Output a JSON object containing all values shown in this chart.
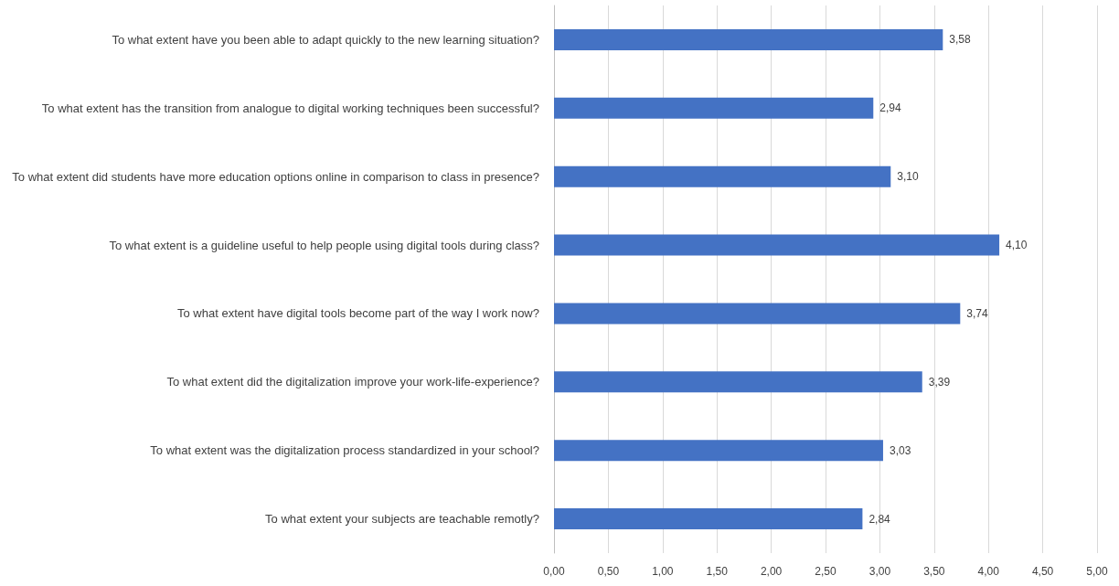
{
  "chart_data": {
    "type": "bar",
    "orientation": "horizontal",
    "categories": [
      "To what extent have you been able to adapt quickly to the new learning situation?",
      "To what extent has the transition from analogue to digital working techniques been successful?",
      "To what extent did students have more education options online in comparison to class in presence?",
      "To what extent is a guideline useful to help people using digital tools during class?",
      "To what extent have digital tools become part of the way I work now?",
      "To what extent did the digitalization improve your work-life-experience?",
      "To what extent was the digitalization process standardized in your school?",
      "To what extent your subjects are teachable remotly?"
    ],
    "values": [
      3.58,
      2.94,
      3.1,
      4.1,
      3.74,
      3.39,
      3.03,
      2.84
    ],
    "value_labels": [
      "3,58",
      "2,94",
      "3,10",
      "4,10",
      "3,74",
      "3,39",
      "3,03",
      "2,84"
    ],
    "color": "#4472c4",
    "xlim": [
      0,
      5
    ],
    "xticks": [
      {
        "value": 0,
        "label": "0,00"
      },
      {
        "value": 0.5,
        "label": "0,50"
      },
      {
        "value": 1,
        "label": "1,00"
      },
      {
        "value": 1.5,
        "label": "1,50"
      },
      {
        "value": 2,
        "label": "2,00"
      },
      {
        "value": 2.5,
        "label": "2,50"
      },
      {
        "value": 3,
        "label": "3,00"
      },
      {
        "value": 3.5,
        "label": "3,50"
      },
      {
        "value": 4,
        "label": "4,00"
      },
      {
        "value": 4.5,
        "label": "4,50"
      },
      {
        "value": 5,
        "label": "5,00"
      }
    ],
    "grid": "x"
  }
}
